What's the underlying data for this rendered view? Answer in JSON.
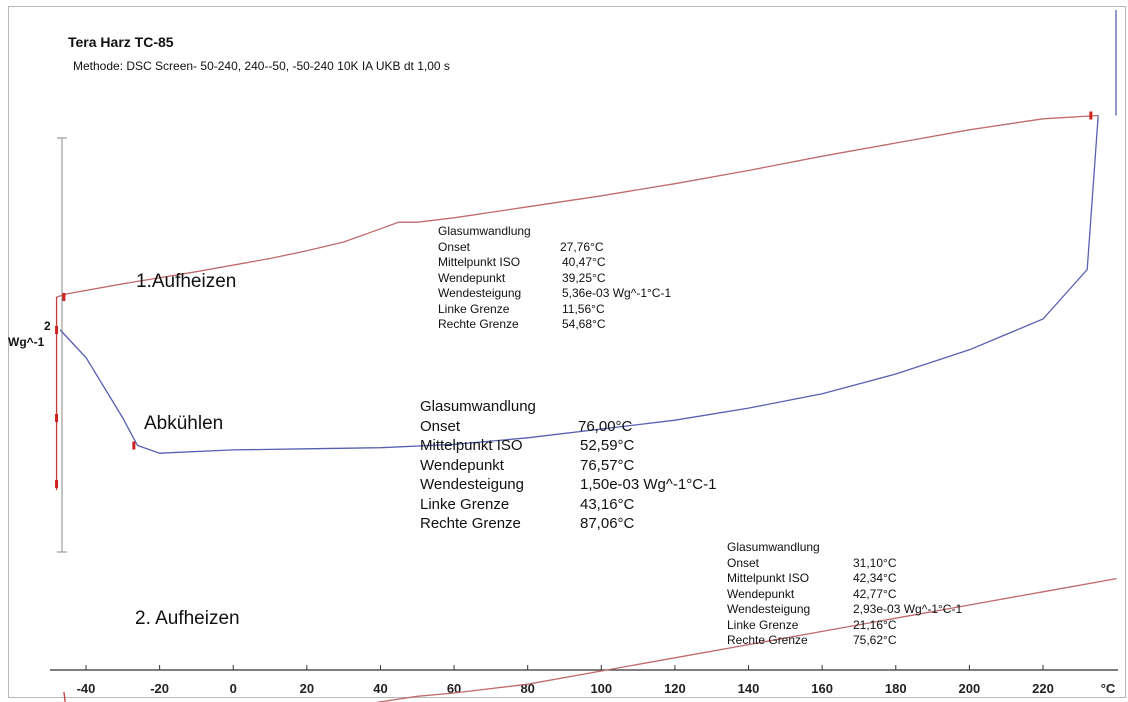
{
  "title": "Tera Harz TC-85",
  "method": "Methode: DSC Screen- 50-240, 240--50, -50-240 10K IA UKB dt 1,00 s",
  "y_scale": {
    "value": "2",
    "unit": "Wg^-1"
  },
  "segments": [
    {
      "label": "1.Aufheizen",
      "glass_transition": {
        "heading": "Glasumwandlung",
        "rows": [
          {
            "key": "Onset",
            "value": "27,76°C"
          },
          {
            "key": "Mittelpunkt ISO",
            "value": "40,47°C"
          },
          {
            "key": "Wendepunkt",
            "value": "39,25°C"
          },
          {
            "key": "Wendesteigung",
            "value": "5,36e-03 Wg^-1°C-1"
          },
          {
            "key": "Linke Grenze",
            "value": "11,56°C"
          },
          {
            "key": "Rechte Grenze",
            "value": "54,68°C"
          }
        ]
      }
    },
    {
      "label": "Abkühlen",
      "glass_transition": {
        "heading": "Glasumwandlung",
        "rows": [
          {
            "key": "Onset",
            "value": "76,00°C"
          },
          {
            "key": "Mittelpunkt ISO",
            "value": "52,59°C"
          },
          {
            "key": "Wendepunkt",
            "value": "76,57°C"
          },
          {
            "key": "Wendesteigung",
            "value": "1,50e-03 Wg^-1°C-1"
          },
          {
            "key": "Linke Grenze",
            "value": "43,16°C"
          },
          {
            "key": "Rechte Grenze",
            "value": "87,06°C"
          }
        ]
      }
    },
    {
      "label": "2. Aufheizen",
      "glass_transition": {
        "heading": "Glasumwandlung",
        "rows": [
          {
            "key": "Onset",
            "value": "31,10°C"
          },
          {
            "key": "Mittelpunkt ISO",
            "value": "42,34°C"
          },
          {
            "key": "Wendepunkt",
            "value": "42,77°C"
          },
          {
            "key": "Wendesteigung",
            "value": "2,93e-03 Wg^-1°C-1"
          },
          {
            "key": "Linke Grenze",
            "value": "21,16°C"
          },
          {
            "key": "Rechte Grenze",
            "value": "75,62°C"
          }
        ]
      }
    }
  ],
  "colors": {
    "heating_curve": "#c06a6a",
    "cooling_curve": "#5560b0",
    "marker": "#d02020",
    "axis": "#333333"
  },
  "chart_data": {
    "type": "line",
    "title": "Tera Harz TC-85",
    "xlabel": "°C",
    "ylabel": "Wg^-1",
    "xlim": [
      -50,
      240
    ],
    "x_ticks": [
      -40,
      -20,
      0,
      20,
      40,
      60,
      80,
      100,
      120,
      140,
      160,
      180,
      200,
      220
    ],
    "grid": false,
    "series": [
      {
        "name": "1.Aufheizen",
        "x": [
          -48,
          -45,
          -30,
          -10,
          10,
          20,
          30,
          40,
          45,
          50,
          60,
          80,
          100,
          120,
          140,
          160,
          180,
          200,
          220,
          235
        ],
        "y": [
          2.3,
          2.33,
          2.42,
          2.53,
          2.65,
          2.72,
          2.8,
          2.92,
          2.98,
          2.98,
          3.02,
          3.12,
          3.22,
          3.33,
          3.45,
          3.58,
          3.7,
          3.82,
          3.92,
          3.95
        ]
      },
      {
        "name": "Abkühlen",
        "x": [
          235,
          232,
          220,
          200,
          180,
          160,
          140,
          120,
          100,
          80,
          60,
          40,
          20,
          0,
          -20,
          -26,
          -30,
          -40,
          -47
        ],
        "y": [
          3.95,
          2.55,
          2.1,
          1.82,
          1.6,
          1.42,
          1.29,
          1.18,
          1.1,
          1.02,
          0.96,
          0.93,
          0.92,
          0.91,
          0.88,
          0.95,
          1.2,
          1.75,
          2.0
        ]
      },
      {
        "name": "2. Aufheizen",
        "x": [
          -45,
          -40,
          -20,
          0,
          20,
          30,
          40,
          50,
          60,
          80,
          100,
          120,
          140,
          160,
          180,
          200,
          220,
          240
        ],
        "y": [
          -1.55,
          -1.62,
          -1.62,
          -1.58,
          -1.5,
          -1.45,
          -1.38,
          -1.33,
          -1.3,
          -1.22,
          -1.1,
          -0.98,
          -0.86,
          -0.74,
          -0.62,
          -0.5,
          -0.38,
          -0.26
        ]
      }
    ]
  }
}
